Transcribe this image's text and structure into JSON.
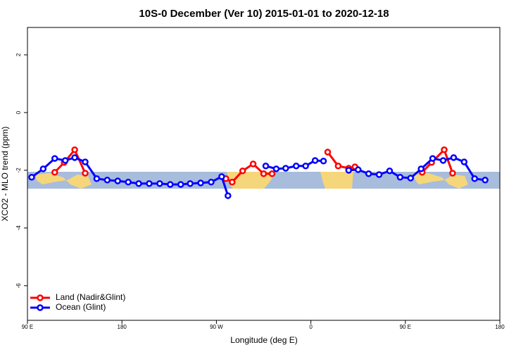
{
  "chart_data": {
    "type": "line",
    "title": "10S-0 December (Ver 10)   2015-01-01 to 2020-12-18",
    "xlabel": "Longitude (deg E)",
    "ylabel": "XCO2 - MLO trend (ppm)",
    "xlim": [
      90,
      540
    ],
    "xticks": [
      {
        "value": 90,
        "label": "90 E"
      },
      {
        "value": 180,
        "label": "180"
      },
      {
        "value": 270,
        "label": "90 W"
      },
      {
        "value": 360,
        "label": "0"
      },
      {
        "value": 450,
        "label": "90 E"
      },
      {
        "value": 540,
        "label": "180"
      }
    ],
    "ylim": [
      -7.2,
      2.95
    ],
    "yticks": [
      -6,
      -4,
      -2,
      0,
      2
    ],
    "legend": "bottom-left",
    "series": [
      {
        "name": "Land (Nadir&Glint)",
        "color": "#ff0000",
        "x": [
          116,
          125,
          135,
          145,
          200,
          279,
          285,
          295,
          305,
          315,
          323,
          350,
          376,
          386,
          396,
          402,
          450,
          466,
          475,
          487,
          495
        ],
        "values": [
          -2.07,
          -1.73,
          -1.29,
          -2.1,
          null,
          -2.29,
          -2.41,
          -2.02,
          -1.78,
          -2.12,
          -2.12,
          null,
          -1.37,
          -1.85,
          -1.93,
          -1.88,
          null,
          -2.07,
          -1.73,
          -1.29,
          -2.1
        ]
      },
      {
        "name": "Ocean (Glint)",
        "color": "#0000ff",
        "x": [
          94,
          105,
          116,
          126,
          135,
          145,
          156,
          166,
          176,
          186,
          196,
          206,
          216,
          226,
          236,
          245,
          255,
          265,
          275,
          281,
          300,
          317,
          327,
          336,
          346,
          355,
          364,
          372,
          382,
          396,
          405,
          415,
          425,
          435,
          445,
          455,
          465,
          476,
          486,
          496,
          506,
          516,
          526
        ],
        "values": [
          -2.24,
          -1.95,
          -1.59,
          -1.66,
          -1.56,
          -1.71,
          -2.29,
          -2.34,
          -2.37,
          -2.41,
          -2.46,
          -2.46,
          -2.46,
          -2.49,
          -2.49,
          -2.46,
          -2.44,
          -2.41,
          -2.22,
          -2.88,
          null,
          -1.85,
          -1.95,
          -1.93,
          -1.85,
          -1.85,
          -1.66,
          -1.68,
          null,
          -2.0,
          -1.98,
          -2.12,
          -2.15,
          -2.02,
          -2.24,
          -2.27,
          -1.95,
          -1.59,
          -1.66,
          -1.56,
          -1.71,
          -2.29,
          -2.34
        ]
      }
    ]
  }
}
